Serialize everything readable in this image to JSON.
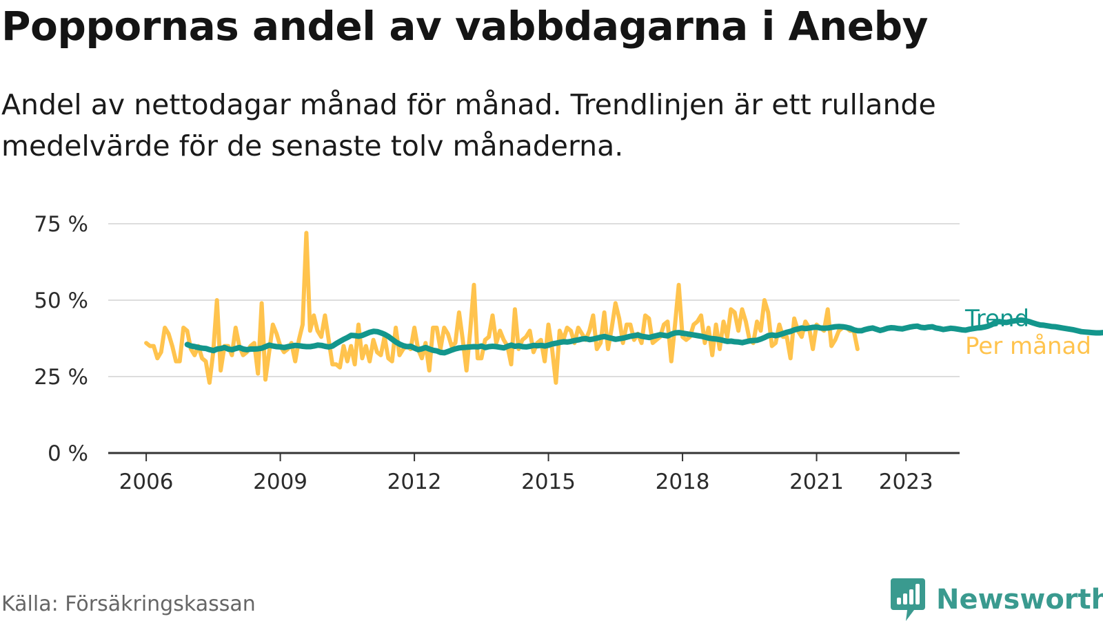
{
  "title": "Poppornas andel av vabbdagarna i Aneby",
  "subtitle": "Andel av nettodagar månad för månad. Trendlinjen är ett rullande medelvärde för de senaste tolv månaderna.",
  "source": "Källa: Försäkringskassan",
  "brand": {
    "name": "Newsworthy",
    "icon": "newsworthy-logo-icon"
  },
  "colors": {
    "monthly": "#ffc34d",
    "trend": "#13968c",
    "grid": "#dddddd",
    "axis": "#333333"
  },
  "chart_data": {
    "type": "line",
    "x_unit": "year",
    "xlim": [
      2005.15,
      2024.2
    ],
    "ylim": [
      0,
      75
    ],
    "yticks": [
      0,
      25,
      50,
      75
    ],
    "ytick_labels": [
      "0 %",
      "25 %",
      "50 %",
      "75 %"
    ],
    "xticks": [
      2006,
      2009,
      2012,
      2015,
      2018,
      2021,
      2023
    ],
    "xtick_labels": [
      "2006",
      "2009",
      "2012",
      "2015",
      "2018",
      "2021",
      "2023"
    ],
    "grid": true,
    "legend_placement": "right end of lines",
    "series": [
      {
        "name": "Per månad",
        "color": "#ffc34d",
        "x_start": 2006.0,
        "step": 0.08333,
        "values": [
          36,
          35,
          35,
          31,
          33,
          41,
          39,
          35,
          30,
          30,
          41,
          40,
          34,
          32,
          35,
          31,
          30,
          23,
          33,
          50,
          27,
          35,
          35,
          32,
          41,
          35,
          32,
          33,
          35,
          36,
          26,
          49,
          24,
          33,
          42,
          39,
          35,
          33,
          34,
          36,
          30,
          37,
          42,
          72,
          40,
          45,
          40,
          38,
          45,
          37,
          29,
          29,
          28,
          35,
          30,
          35,
          29,
          42,
          31,
          35,
          30,
          37,
          33,
          32,
          38,
          31,
          30,
          41,
          32,
          34,
          35,
          34,
          41,
          34,
          31,
          36,
          27,
          41,
          41,
          34,
          41,
          39,
          35,
          36,
          46,
          37,
          27,
          40,
          55,
          31,
          31,
          37,
          38,
          45,
          36,
          40,
          37,
          35,
          29,
          47,
          34,
          37,
          38,
          40,
          33,
          36,
          37,
          30,
          42,
          34,
          23,
          40,
          37,
          41,
          40,
          36,
          41,
          39,
          37,
          40,
          45,
          34,
          36,
          46,
          34,
          41,
          49,
          44,
          36,
          42,
          42,
          37,
          39,
          36,
          45,
          44,
          36,
          37,
          38,
          42,
          43,
          30,
          42,
          55,
          38,
          37,
          38,
          42,
          43,
          45,
          36,
          41,
          32,
          42,
          34,
          43,
          38,
          47,
          46,
          40,
          47,
          43,
          37,
          36,
          43,
          40,
          50,
          46,
          35,
          36,
          42,
          38,
          38,
          31,
          44,
          40,
          38,
          43,
          41,
          34,
          42,
          41,
          40,
          47,
          35,
          37,
          40,
          41,
          41,
          40,
          40,
          34
        ]
      },
      {
        "name": "Trend",
        "color": "#13968c",
        "x_start": 2006.92,
        "step": 0.08333,
        "values": [
          35.5,
          35,
          34.8,
          34.5,
          34.3,
          34.2,
          33.8,
          33.5,
          34,
          34.2,
          34.5,
          34,
          33.8,
          34.2,
          34.5,
          34,
          33.8,
          34,
          34,
          34.1,
          34.3,
          34.8,
          35.3,
          35,
          34.8,
          34.7,
          34.5,
          34.8,
          35,
          35.2,
          35.1,
          34.9,
          34.8,
          34.8,
          35,
          35.3,
          35.2,
          34.9,
          34.7,
          35,
          35.8,
          36.5,
          37.2,
          37.8,
          38.5,
          38.4,
          38.2,
          38.5,
          39,
          39.5,
          39.8,
          39.7,
          39.3,
          38.8,
          38.1,
          37.2,
          36.3,
          35.6,
          35.1,
          34.8,
          34.9,
          34.3,
          33.8,
          34.1,
          34.5,
          34,
          33.6,
          33.4,
          32.9,
          32.8,
          33.2,
          33.7,
          34.1,
          34.4,
          34.5,
          34.6,
          34.7,
          34.8,
          34.7,
          35,
          34.5,
          34.8,
          34.9,
          34.8,
          34.6,
          34.4,
          34.9,
          35.3,
          34.9,
          35.1,
          34.8,
          34.7,
          34.9,
          35.2,
          35.1,
          35.2,
          35,
          35.3,
          35.7,
          35.9,
          36.2,
          36.4,
          36.3,
          36.5,
          36.8,
          37,
          37.3,
          37.4,
          37.1,
          37.3,
          37.6,
          37.9,
          38.1,
          37.8,
          37.5,
          37.2,
          37.4,
          37.6,
          37.9,
          38.2,
          38.4,
          38.6,
          38.2,
          38,
          37.8,
          38.1,
          38.4,
          38.7,
          38.5,
          38.3,
          38.9,
          39.3,
          39.4,
          39.2,
          39,
          38.8,
          38.6,
          38.4,
          38.2,
          37.9,
          37.6,
          37.4,
          37.3,
          37.1,
          36.8,
          36.5,
          36.6,
          36.4,
          36.3,
          36.1,
          36.4,
          36.7,
          36.8,
          36.9,
          37.3,
          37.8,
          38.4,
          38.6,
          38.4,
          38.7,
          39.1,
          39.5,
          39.8,
          40.3,
          40.6,
          40.9,
          40.7,
          40.9,
          41.1,
          41.2,
          40.9,
          40.8,
          40.9,
          41.1,
          41.3,
          41.4,
          41.3,
          41.1,
          40.8,
          40.3,
          40,
          40,
          40.4,
          40.7,
          40.9,
          40.5,
          40.1,
          40.4,
          40.8,
          41,
          40.9,
          40.7,
          40.6,
          40.9,
          41.2,
          41.4,
          41.5,
          41.1,
          41,
          41.2,
          41.3,
          40.9,
          40.7,
          40.4,
          40.6,
          40.8,
          40.7,
          40.5,
          40.3,
          40.2,
          40.5,
          40.7,
          40.9,
          41,
          41.2,
          41.5,
          42,
          42.7,
          43,
          42.8,
          42.7,
          43,
          43.2,
          43.4,
          43.5,
          43.3,
          43,
          42.6,
          42.2,
          41.9,
          41.8,
          41.6,
          41.4,
          41.3,
          41.1,
          40.9,
          40.7,
          40.5,
          40.3,
          40,
          39.7,
          39.6,
          39.5,
          39.4,
          39.3,
          39.3,
          39.4,
          39.6,
          39.8,
          39.7,
          39.5,
          39.3,
          39.1,
          39.2,
          39.4,
          39.7,
          39.9,
          39.5,
          39,
          38.9,
          39.1,
          39.2
        ]
      }
    ]
  }
}
